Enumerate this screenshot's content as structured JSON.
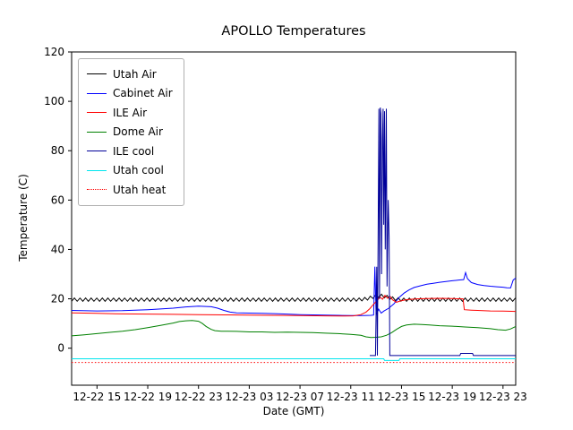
{
  "chart_data": {
    "type": "line",
    "title": "APOLLO Temperatures",
    "xlabel": "Date (GMT)",
    "ylabel": "Temperature (C)",
    "x_unit": "hours since 12-22 00:00 GMT",
    "xlim": [
      13,
      48
    ],
    "ylim": [
      -15,
      120
    ],
    "grid": false,
    "legend_position": "upper left",
    "y_ticks": [
      0,
      20,
      40,
      60,
      80,
      100,
      120
    ],
    "x_ticks": [
      {
        "x": 15,
        "label": "12-22 15"
      },
      {
        "x": 19,
        "label": "12-22 19"
      },
      {
        "x": 23,
        "label": "12-22 23"
      },
      {
        "x": 27,
        "label": "12-23 03"
      },
      {
        "x": 31,
        "label": "12-23 07"
      },
      {
        "x": 35,
        "label": "12-23 11"
      },
      {
        "x": 39,
        "label": "12-23 15"
      },
      {
        "x": 43,
        "label": "12-23 19"
      },
      {
        "x": 47,
        "label": "12-23 23"
      }
    ],
    "series": [
      {
        "name": "Utah Air",
        "color": "#000000",
        "sawtooth": {
          "x_start": 13,
          "x_end": 48,
          "period": 0.44,
          "y_lo": 19.0,
          "y_hi": 20.3,
          "bump_center": 37.3,
          "bump_amp": 1.6,
          "bump_width": 0.9
        }
      },
      {
        "name": "Cabinet Air",
        "color": "#0000ff",
        "points": [
          [
            13,
            15.3
          ],
          [
            15,
            15.1
          ],
          [
            17,
            15.2
          ],
          [
            19,
            15.6
          ],
          [
            21,
            16.2
          ],
          [
            22,
            16.7
          ],
          [
            23,
            17.0
          ],
          [
            24,
            16.8
          ],
          [
            24.5,
            16.2
          ],
          [
            25,
            15.3
          ],
          [
            25.5,
            14.6
          ],
          [
            26,
            14.3
          ],
          [
            27,
            14.2
          ],
          [
            28,
            14.1
          ],
          [
            29,
            14.0
          ],
          [
            30,
            13.8
          ],
          [
            31,
            13.6
          ],
          [
            32,
            13.5
          ],
          [
            33,
            13.4
          ],
          [
            34,
            13.3
          ],
          [
            35,
            13.2
          ],
          [
            36,
            13.2
          ],
          [
            36.6,
            13.3
          ],
          [
            36.8,
            13.4
          ],
          [
            36.9,
            33
          ],
          [
            37.0,
            13.5
          ],
          [
            37.2,
            15.8
          ],
          [
            37.4,
            14.2
          ],
          [
            37.6,
            15.0
          ],
          [
            38,
            16.2
          ],
          [
            38.4,
            18.0
          ],
          [
            38.8,
            20.5
          ],
          [
            39.2,
            22.3
          ],
          [
            39.6,
            23.6
          ],
          [
            40,
            24.6
          ],
          [
            40.5,
            25.3
          ],
          [
            41,
            25.9
          ],
          [
            41.5,
            26.3
          ],
          [
            42,
            26.7
          ],
          [
            42.5,
            27.0
          ],
          [
            43,
            27.3
          ],
          [
            43.5,
            27.6
          ],
          [
            43.9,
            27.8
          ],
          [
            44.05,
            30.6
          ],
          [
            44.2,
            28.2
          ],
          [
            44.5,
            26.6
          ],
          [
            45,
            25.8
          ],
          [
            45.5,
            25.4
          ],
          [
            46,
            25.1
          ],
          [
            46.5,
            24.9
          ],
          [
            47,
            24.7
          ],
          [
            47.3,
            24.5
          ],
          [
            47.6,
            24.4
          ],
          [
            47.8,
            27.6
          ],
          [
            48,
            28.4
          ]
        ]
      },
      {
        "name": "ILE Air",
        "color": "#ff0000",
        "points": [
          [
            13,
            14.3
          ],
          [
            15,
            14.1
          ],
          [
            17,
            13.9
          ],
          [
            19,
            13.8
          ],
          [
            21,
            13.7
          ],
          [
            23,
            13.6
          ],
          [
            25,
            13.5
          ],
          [
            27,
            13.4
          ],
          [
            29,
            13.3
          ],
          [
            31,
            13.2
          ],
          [
            33,
            13.1
          ],
          [
            34.5,
            13.0
          ],
          [
            35.2,
            13.1
          ],
          [
            35.8,
            13.6
          ],
          [
            36.2,
            14.6
          ],
          [
            36.5,
            16.0
          ],
          [
            36.8,
            17.8
          ],
          [
            37.1,
            19.4
          ],
          [
            37.3,
            20.8
          ],
          [
            37.5,
            19.8
          ],
          [
            37.7,
            21.4
          ],
          [
            37.9,
            20.2
          ],
          [
            38.1,
            21.0
          ],
          [
            38.3,
            19.6
          ],
          [
            38.6,
            18.6
          ],
          [
            38.9,
            19.1
          ],
          [
            39.3,
            19.6
          ],
          [
            39.7,
            19.8
          ],
          [
            40.2,
            20.0
          ],
          [
            41,
            20.1
          ],
          [
            42,
            20.2
          ],
          [
            43,
            20.1
          ],
          [
            43.85,
            20.0
          ],
          [
            43.95,
            15.6
          ],
          [
            44.5,
            15.4
          ],
          [
            45,
            15.3
          ],
          [
            46,
            15.1
          ],
          [
            47,
            15.0
          ],
          [
            48,
            14.9
          ]
        ]
      },
      {
        "name": "Dome Air",
        "color": "#008000",
        "points": [
          [
            13,
            5.0
          ],
          [
            14,
            5.4
          ],
          [
            15,
            5.9
          ],
          [
            16,
            6.4
          ],
          [
            17,
            6.9
          ],
          [
            18,
            7.5
          ],
          [
            19,
            8.3
          ],
          [
            20,
            9.2
          ],
          [
            21,
            10.2
          ],
          [
            21.5,
            10.8
          ],
          [
            22,
            11.1
          ],
          [
            22.5,
            11.2
          ],
          [
            23,
            10.9
          ],
          [
            23.3,
            10.0
          ],
          [
            23.6,
            8.8
          ],
          [
            24,
            7.6
          ],
          [
            24.3,
            7.1
          ],
          [
            24.8,
            6.9
          ],
          [
            26,
            6.8
          ],
          [
            27,
            6.6
          ],
          [
            28,
            6.6
          ],
          [
            29,
            6.4
          ],
          [
            30,
            6.5
          ],
          [
            31,
            6.4
          ],
          [
            32,
            6.3
          ],
          [
            33,
            6.1
          ],
          [
            34,
            5.9
          ],
          [
            35,
            5.6
          ],
          [
            35.8,
            5.2
          ],
          [
            36.2,
            4.6
          ],
          [
            36.6,
            4.3
          ],
          [
            37,
            4.4
          ],
          [
            37.4,
            4.6
          ],
          [
            37.8,
            5.2
          ],
          [
            38.2,
            6.2
          ],
          [
            38.6,
            7.6
          ],
          [
            39,
            8.8
          ],
          [
            39.4,
            9.4
          ],
          [
            40,
            9.7
          ],
          [
            40.6,
            9.6
          ],
          [
            41.2,
            9.4
          ],
          [
            42,
            9.1
          ],
          [
            43,
            8.9
          ],
          [
            44,
            8.6
          ],
          [
            45,
            8.3
          ],
          [
            46,
            7.9
          ],
          [
            46.6,
            7.5
          ],
          [
            47.2,
            7.3
          ],
          [
            47.6,
            7.8
          ],
          [
            48,
            8.8
          ]
        ]
      },
      {
        "name": "ILE cool",
        "color": "#000099",
        "points": [
          [
            36.5,
            -3
          ],
          [
            36.95,
            -3
          ],
          [
            37.05,
            33
          ],
          [
            37.1,
            -3
          ],
          [
            37.22,
            97
          ],
          [
            37.27,
            20
          ],
          [
            37.33,
            97.5
          ],
          [
            37.38,
            95
          ],
          [
            37.43,
            30
          ],
          [
            37.5,
            85
          ],
          [
            37.55,
            97
          ],
          [
            37.6,
            50
          ],
          [
            37.66,
            96
          ],
          [
            37.72,
            40
          ],
          [
            37.8,
            97
          ],
          [
            37.86,
            25
          ],
          [
            37.95,
            60
          ],
          [
            38.02,
            45
          ],
          [
            38.08,
            -3
          ],
          [
            38.4,
            -3
          ],
          [
            43.6,
            -3
          ],
          [
            43.67,
            -2.1
          ],
          [
            44.6,
            -2.1
          ],
          [
            44.67,
            -3
          ],
          [
            48,
            -3
          ]
        ]
      },
      {
        "name": "Utah cool",
        "color": "#00e5ee",
        "points": [
          [
            13,
            -4.3
          ],
          [
            37.6,
            -4.3
          ],
          [
            37.67,
            -5.0
          ],
          [
            38.8,
            -5.0
          ],
          [
            38.87,
            -4.3
          ],
          [
            48,
            -4.3
          ]
        ]
      },
      {
        "name": "Utah heat",
        "color": "#ff0000",
        "dash": "1.5,2.2",
        "points": [
          [
            13,
            -5.8
          ],
          [
            48,
            -5.8
          ]
        ]
      }
    ]
  }
}
